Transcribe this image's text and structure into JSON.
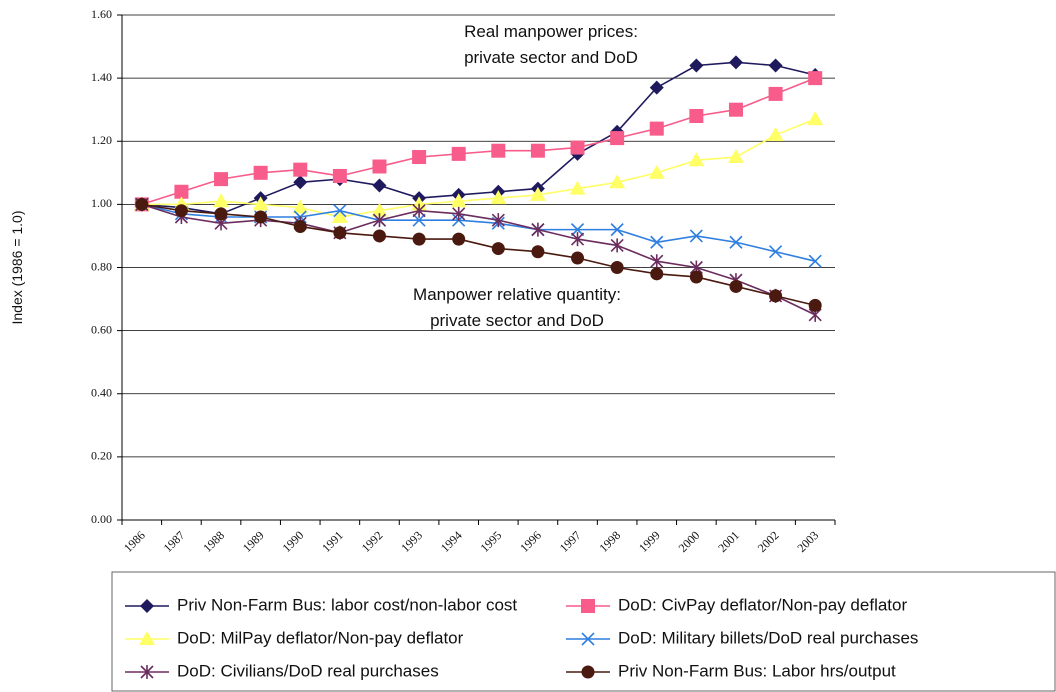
{
  "chart_data": {
    "type": "line",
    "y_label": "Index (1986 = 1.0)",
    "annotations": [
      {
        "lines": [
          "Real manpower prices:",
          "private sector and DoD"
        ]
      },
      {
        "lines": [
          "Manpower relative quantity:",
          "private sector and DoD"
        ]
      }
    ],
    "categories": [
      "1986",
      "1987",
      "1988",
      "1989",
      "1990",
      "1991",
      "1992",
      "1993",
      "1994",
      "1995",
      "1996",
      "1997",
      "1998",
      "1999",
      "2000",
      "2001",
      "2002",
      "2003"
    ],
    "ylim": [
      0,
      1.6
    ],
    "yticks": [
      {
        "value": 0,
        "label": "0.00"
      },
      {
        "value": 0.2,
        "label": "0.20"
      },
      {
        "value": 0.4,
        "label": "0.40"
      },
      {
        "value": 0.6,
        "label": "0.60"
      },
      {
        "value": 0.8,
        "label": "0.80"
      },
      {
        "value": 1.0,
        "label": "1.00"
      },
      {
        "value": 1.2,
        "label": "1.20"
      },
      {
        "value": 1.4,
        "label": "1.40"
      },
      {
        "value": 1.6,
        "label": "1.60"
      }
    ],
    "grid": true,
    "series": [
      {
        "name": "Priv Non-Farm Bus: labor cost/non-labor cost",
        "color": "#1f1a5e",
        "marker": "diamond",
        "values": [
          1.0,
          0.99,
          0.97,
          1.02,
          1.07,
          1.08,
          1.06,
          1.02,
          1.03,
          1.04,
          1.05,
          1.16,
          1.23,
          1.37,
          1.44,
          1.45,
          1.44,
          1.41
        ]
      },
      {
        "name": "DoD: CivPay deflator/Non-pay deflator",
        "color": "#f75c8a",
        "marker": "square",
        "values": [
          1.0,
          1.04,
          1.08,
          1.1,
          1.11,
          1.09,
          1.12,
          1.15,
          1.16,
          1.17,
          1.17,
          1.18,
          1.21,
          1.24,
          1.28,
          1.3,
          1.35,
          1.4
        ]
      },
      {
        "name": "DoD: MilPay deflator/Non-pay deflator",
        "color": "#ffff66",
        "marker": "triangle",
        "values": [
          1.0,
          1.0,
          1.01,
          1.0,
          0.99,
          0.96,
          0.98,
          1.0,
          1.01,
          1.02,
          1.03,
          1.05,
          1.07,
          1.1,
          1.14,
          1.15,
          1.22,
          1.27
        ]
      },
      {
        "name": "DoD: Military billets/DoD real purchases",
        "color": "#2f7fe0",
        "marker": "x",
        "values": [
          1.0,
          0.97,
          0.96,
          0.96,
          0.96,
          0.98,
          0.95,
          0.95,
          0.95,
          0.94,
          0.92,
          0.92,
          0.92,
          0.88,
          0.9,
          0.88,
          0.85,
          0.82
        ]
      },
      {
        "name": "DoD: Civilians/DoD real purchases",
        "color": "#6b2c5e",
        "marker": "asterisk",
        "values": [
          1.0,
          0.96,
          0.94,
          0.95,
          0.94,
          0.91,
          0.95,
          0.98,
          0.97,
          0.95,
          0.92,
          0.89,
          0.87,
          0.82,
          0.8,
          0.76,
          0.71,
          0.65
        ]
      },
      {
        "name": "Priv Non-Farm Bus: Labor hrs/output",
        "color": "#4a1a10",
        "marker": "circle",
        "values": [
          1.0,
          0.98,
          0.97,
          0.96,
          0.93,
          0.91,
          0.9,
          0.89,
          0.89,
          0.86,
          0.85,
          0.83,
          0.8,
          0.78,
          0.77,
          0.74,
          0.71,
          0.68
        ]
      }
    ]
  }
}
